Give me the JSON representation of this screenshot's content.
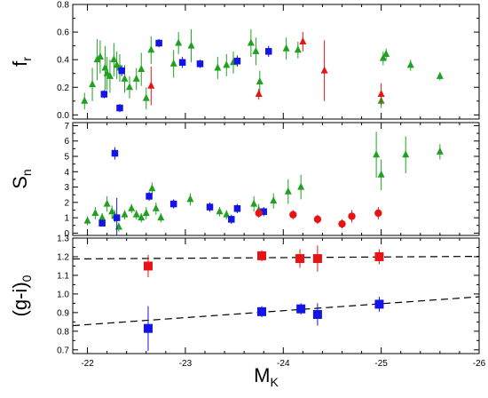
{
  "chart_data": {
    "type": "scatter",
    "xlabel": "M",
    "xlabel_sub": "K",
    "xlim": [
      -21.85,
      -26.0
    ],
    "xticks": [
      -22,
      -23,
      -24,
      -25,
      -26
    ],
    "xtick_labels": [
      "-22",
      "-23",
      "-24",
      "-25",
      "-26"
    ],
    "panels": [
      {
        "id": "fr",
        "ylabel": "f",
        "ylabel_sub": "r",
        "ylim": [
          -0.03,
          0.8
        ],
        "yticks": [
          0.0,
          0.2,
          0.4,
          0.6,
          0.8
        ],
        "ytick_labels": [
          "0.0",
          "0.2",
          "0.4",
          "0.6",
          "0.8"
        ],
        "series": [
          {
            "marker": "triangle",
            "color": "#22a022",
            "points": [
              [
                -21.97,
                0.1,
                0.06
              ],
              [
                -22.05,
                0.22,
                0.12
              ],
              [
                -22.1,
                0.4,
                0.15
              ],
              [
                -22.13,
                0.42,
                0.12
              ],
              [
                -22.18,
                0.34,
                0.16
              ],
              [
                -22.2,
                0.3,
                0.12
              ],
              [
                -22.23,
                0.28,
                0.12
              ],
              [
                -22.27,
                0.4,
                0.12
              ],
              [
                -22.3,
                0.36,
                0.1
              ],
              [
                -22.33,
                0.34,
                0.1
              ],
              [
                -22.38,
                0.26,
                0.1
              ],
              [
                -22.43,
                0.2,
                0.08
              ],
              [
                -22.5,
                0.26,
                0.08
              ],
              [
                -22.55,
                0.33,
                0.12
              ],
              [
                -22.6,
                0.12,
                0.08
              ],
              [
                -22.65,
                0.47,
                0.1
              ],
              [
                -22.88,
                0.37,
                0.1
              ],
              [
                -22.93,
                0.52,
                0.08
              ],
              [
                -23.06,
                0.5,
                0.12
              ],
              [
                -23.33,
                0.34,
                0.08
              ],
              [
                -23.42,
                0.36,
                0.08
              ],
              [
                -23.49,
                0.38,
                0.08
              ],
              [
                -23.67,
                0.52,
                0.1
              ],
              [
                -23.72,
                0.46,
                0.1
              ],
              [
                -23.76,
                0.24,
                0.08
              ],
              [
                -24.03,
                0.48,
                0.08
              ],
              [
                -24.15,
                0.47,
                0.06
              ],
              [
                -25.0,
                0.1,
                0.05
              ],
              [
                -25.02,
                0.41,
                0.05
              ],
              [
                -25.05,
                0.44,
                0.04
              ],
              [
                -25.3,
                0.36,
                0.04
              ],
              [
                -25.6,
                0.28,
                0.03
              ]
            ]
          },
          {
            "marker": "square",
            "color": "#1414e6",
            "points": [
              [
                -22.17,
                0.15,
                0.03
              ],
              [
                -22.33,
                0.05,
                0.03
              ],
              [
                -22.35,
                0.32,
                0.04
              ],
              [
                -22.73,
                0.52,
                0.03
              ],
              [
                -22.97,
                0.38,
                0.04
              ],
              [
                -23.15,
                0.37,
                0.03
              ],
              [
                -23.53,
                0.39,
                0.04
              ],
              [
                -23.85,
                0.46,
                0.04
              ]
            ]
          },
          {
            "marker": "triangle",
            "color": "#e61414",
            "points": [
              [
                -22.65,
                0.21,
                0.14
              ],
              [
                -23.75,
                0.15,
                0.04
              ],
              [
                -24.2,
                0.53,
                0.07
              ],
              [
                -24.42,
                0.32,
                0.22
              ],
              [
                -25.0,
                0.15,
                0.08
              ]
            ]
          }
        ]
      },
      {
        "id": "sn",
        "ylabel": "S",
        "ylabel_sub": "n",
        "ylim": [
          -0.15,
          7.2
        ],
        "yticks": [
          0,
          1,
          2,
          3,
          4,
          5,
          6,
          7
        ],
        "ytick_labels": [
          "0",
          "1",
          "2",
          "3",
          "4",
          "5",
          "6",
          "7"
        ],
        "series": [
          {
            "marker": "triangle",
            "color": "#22a022",
            "points": [
              [
                -22.0,
                0.8,
                0.3
              ],
              [
                -22.08,
                1.3,
                0.4
              ],
              [
                -22.15,
                1.0,
                0.3
              ],
              [
                -22.2,
                1.9,
                0.5
              ],
              [
                -22.25,
                1.4,
                0.4
              ],
              [
                -22.28,
                1.1,
                0.4
              ],
              [
                -22.32,
                0.4,
                0.3
              ],
              [
                -22.38,
                1.2,
                0.3
              ],
              [
                -22.45,
                1.6,
                0.3
              ],
              [
                -22.5,
                1.2,
                0.3
              ],
              [
                -22.55,
                1.0,
                0.3
              ],
              [
                -22.6,
                1.3,
                0.4
              ],
              [
                -22.66,
                2.9,
                0.4
              ],
              [
                -22.7,
                1.6,
                0.4
              ],
              [
                -22.75,
                1.0,
                0.3
              ],
              [
                -23.05,
                2.2,
                0.4
              ],
              [
                -23.35,
                1.4,
                0.3
              ],
              [
                -23.42,
                1.2,
                0.3
              ],
              [
                -23.7,
                1.9,
                0.5
              ],
              [
                -23.75,
                1.5,
                0.4
              ],
              [
                -23.9,
                2.1,
                0.5
              ],
              [
                -24.05,
                2.7,
                0.8
              ],
              [
                -24.18,
                3.0,
                0.8
              ],
              [
                -24.95,
                5.1,
                1.5
              ],
              [
                -25.0,
                3.8,
                1.0
              ],
              [
                -25.25,
                5.1,
                1.2
              ],
              [
                -25.6,
                5.3,
                0.5
              ]
            ]
          },
          {
            "marker": "square",
            "color": "#1414e6",
            "points": [
              [
                -22.15,
                0.65,
                0.2
              ],
              [
                -22.3,
                1.0,
                1.3
              ],
              [
                -22.63,
                2.4,
                0.3
              ],
              [
                -22.88,
                1.9,
                0.3
              ],
              [
                -23.25,
                1.7,
                0.3
              ],
              [
                -23.53,
                1.6,
                0.3
              ],
              [
                -23.47,
                0.9,
                0.3
              ],
              [
                -23.8,
                1.4,
                0.3
              ],
              [
                -22.28,
                5.2,
                0.4
              ]
            ]
          },
          {
            "marker": "circle",
            "color": "#e61414",
            "points": [
              [
                -23.75,
                1.3,
                0.3
              ],
              [
                -24.1,
                1.2,
                0.3
              ],
              [
                -24.35,
                0.9,
                0.3
              ],
              [
                -24.6,
                0.6,
                0.3
              ],
              [
                -24.7,
                1.1,
                0.4
              ],
              [
                -24.97,
                1.3,
                0.4
              ]
            ]
          }
        ]
      },
      {
        "id": "gi",
        "ylabel": "(g-i)",
        "ylabel_sub": "0",
        "ylim": [
          0.68,
          1.3
        ],
        "yticks": [
          0.7,
          0.8,
          0.9,
          1.0,
          1.1,
          1.2,
          1.3
        ],
        "ytick_labels": [
          "0.7",
          "0.8",
          "0.9",
          "1.0",
          "1.1",
          "1.2",
          "1.3"
        ],
        "lines": [
          {
            "x": [
              -21.85,
              -26.0
            ],
            "y": [
              1.188,
              1.202
            ]
          },
          {
            "x": [
              -21.85,
              -26.0
            ],
            "y": [
              0.83,
              0.985
            ]
          }
        ],
        "series": [
          {
            "marker": "square",
            "color": "#e61414",
            "points": [
              [
                -22.62,
                1.15,
                0.06
              ],
              [
                -23.78,
                1.205,
                0.03
              ],
              [
                -24.17,
                1.19,
                0.05
              ],
              [
                -24.35,
                1.19,
                0.07
              ],
              [
                -24.98,
                1.2,
                0.04
              ]
            ]
          },
          {
            "marker": "square",
            "color": "#1414e6",
            "points": [
              [
                -22.62,
                0.815,
                0.12
              ],
              [
                -23.78,
                0.905,
                0.03
              ],
              [
                -24.18,
                0.92,
                0.03
              ],
              [
                -24.35,
                0.89,
                0.06
              ],
              [
                -24.98,
                0.945,
                0.04
              ]
            ]
          }
        ]
      }
    ]
  }
}
